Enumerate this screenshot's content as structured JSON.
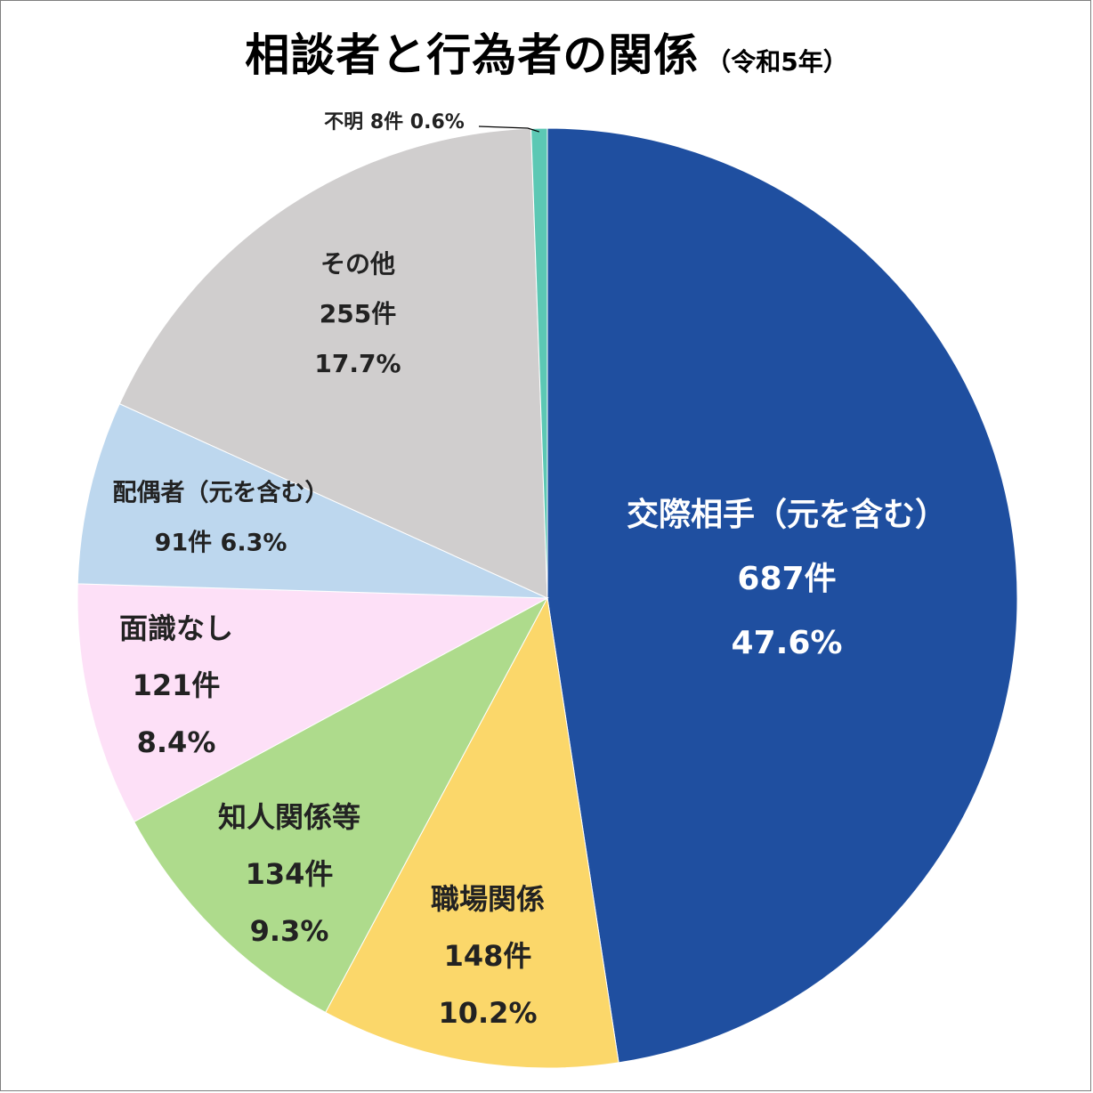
{
  "chart_data": {
    "type": "pie",
    "title": "相談者と行為者の関係",
    "subtitle": "（令和5年）",
    "slices": [
      {
        "label": "交際相手（元を含む）",
        "count_text": "687件",
        "percent_text": "47.6%",
        "value": 687,
        "color": "#1f4fa0",
        "text_color": "#ffffff"
      },
      {
        "label": "職場関係",
        "count_text": "148件",
        "percent_text": "10.2%",
        "value": 148,
        "color": "#fbd76a",
        "text_color": "#222222"
      },
      {
        "label": "知人関係等",
        "count_text": "134件",
        "percent_text": "9.3%",
        "value": 134,
        "color": "#aedb8c",
        "text_color": "#222222"
      },
      {
        "label": "面識なし",
        "count_text": "121件",
        "percent_text": "8.4%",
        "value": 121,
        "color": "#fde0f7",
        "text_color": "#222222"
      },
      {
        "label": "配偶者（元を含む）",
        "count_text": "91件",
        "percent_text": "6.3%",
        "value": 91,
        "color": "#bdd7ee",
        "text_color": "#222222"
      },
      {
        "label": "その他",
        "count_text": "255件",
        "percent_text": "17.7%",
        "value": 255,
        "color": "#d0cece",
        "text_color": "#222222"
      },
      {
        "label": "不明",
        "count_text": "8件",
        "percent_text": "0.6%",
        "value": 8,
        "color": "#5cc8b4",
        "text_color": "#222222"
      }
    ]
  }
}
